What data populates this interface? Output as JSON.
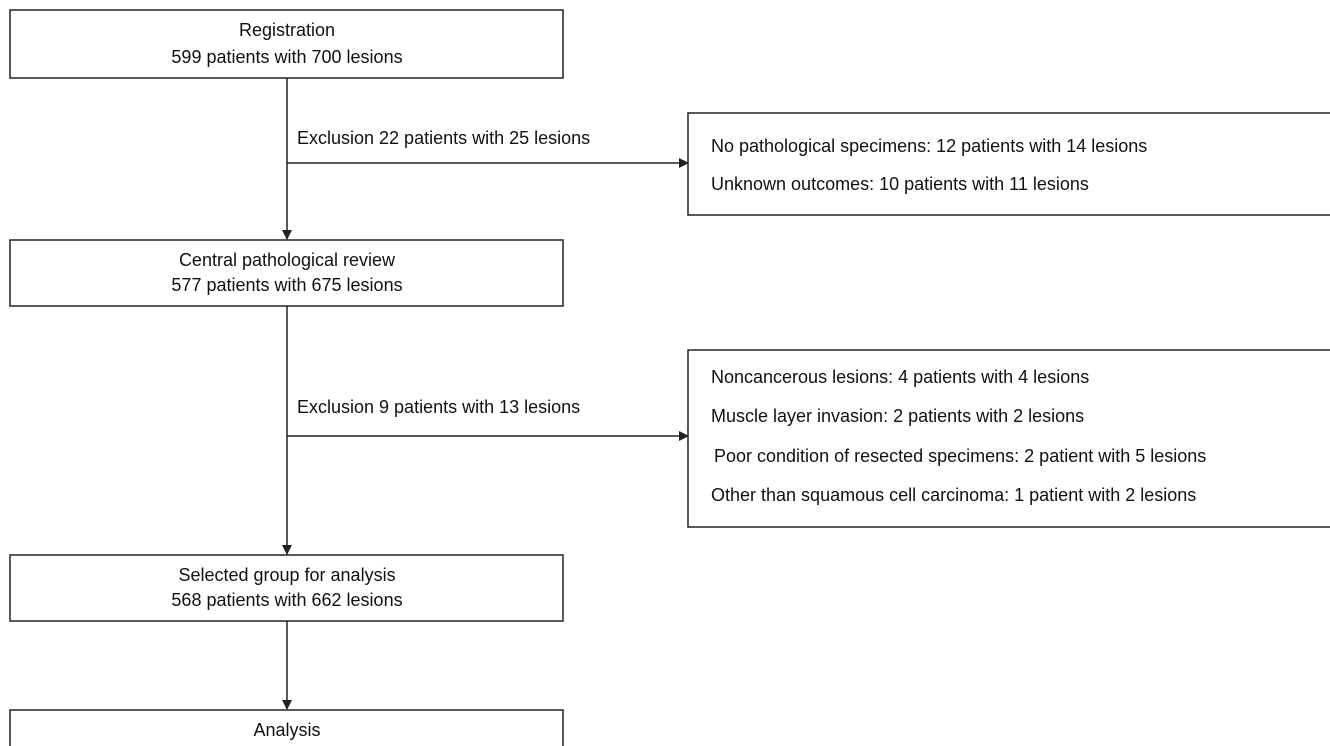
{
  "nodes": [
    {
      "title": "Registration",
      "detail": "599 patients with 700 lesions"
    },
    {
      "title": "Central pathological review",
      "detail": "577 patients with 675 lesions"
    },
    {
      "title": "Selected group for analysis",
      "detail": "568 patients with 662 lesions"
    },
    {
      "title": "Analysis"
    }
  ],
  "exclusions": [
    {
      "label": "Exclusion 22 patients with 25 lesions",
      "reasons": [
        "No pathological specimens: 12 patients with 14 lesions",
        "Unknown outcomes: 10 patients with 11 lesions"
      ]
    },
    {
      "label": "Exclusion 9 patients with 13 lesions",
      "reasons": [
        "Noncancerous lesions: 4 patients with 4 lesions",
        "Muscle layer invasion: 2 patients with 2 lesions",
        "Poor condition of resected specimens: 2 patient with 5 lesions",
        "Other than squamous cell carcinoma: 1 patient with 2 lesions"
      ]
    }
  ]
}
